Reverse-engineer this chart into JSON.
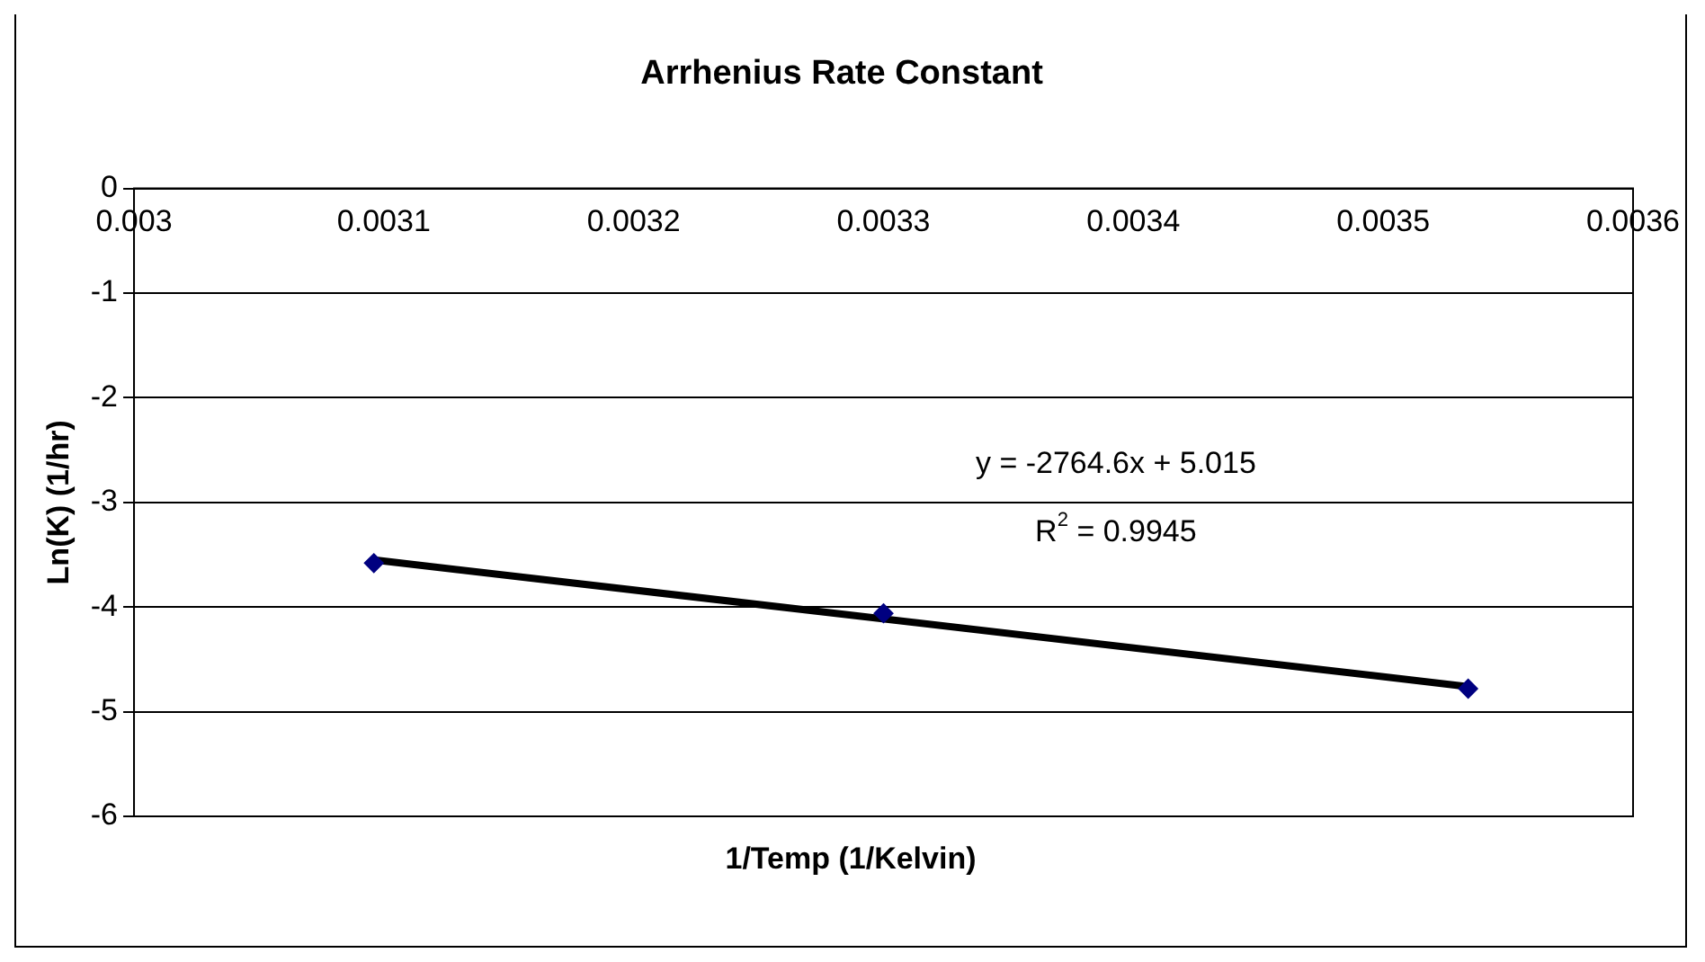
{
  "chart_data": {
    "type": "scatter",
    "title": "Arrhenius Rate Constant",
    "xlabel": "1/Temp (1/Kelvin)",
    "ylabel": "Ln(K) (1/hr)",
    "series": [
      {
        "color": "#000080",
        "x": [
          0.003096,
          0.0033,
          0.003534
        ],
        "values": [
          -3.58,
          -4.06,
          -4.78
        ],
        "marker": "diamond"
      },
      {
        "type": "line",
        "color": "#000000",
        "x": [
          0.003096,
          0.003534
        ],
        "values": [
          -3.55,
          -4.76
        ],
        "marker": "none",
        "line_style": "solid"
      }
    ],
    "xlim": [
      0.003,
      0.0036
    ],
    "xticks": [
      0.003,
      0.0031,
      0.0032,
      0.0033,
      0.0034,
      0.0035,
      0.0036
    ],
    "ylim": [
      -6,
      0
    ],
    "yticks": [
      -6,
      -5,
      -4,
      -3,
      -2,
      -1,
      0
    ],
    "grid": "y",
    "legend": false,
    "annotations": [
      "y = -2764.6x + 5.015",
      "R$^{2}$ = 0.9945"
    ]
  }
}
